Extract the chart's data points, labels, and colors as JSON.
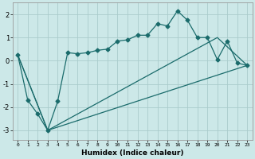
{
  "xlabel": "Humidex (Indice chaleur)",
  "background_color": "#cce8e8",
  "grid_color": "#aacccc",
  "line_color": "#1a6b6b",
  "xlim": [
    -0.5,
    23.5
  ],
  "ylim": [
    -3.4,
    2.5
  ],
  "xticks": [
    0,
    1,
    2,
    3,
    4,
    5,
    6,
    7,
    8,
    9,
    10,
    11,
    12,
    13,
    14,
    15,
    16,
    17,
    18,
    19,
    20,
    21,
    22,
    23
  ],
  "yticks": [
    -3,
    -2,
    -1,
    0,
    1,
    2
  ],
  "line1_x": [
    0,
    1,
    2,
    3,
    4,
    5,
    6,
    7,
    8,
    9,
    10,
    11,
    12,
    13,
    14,
    15,
    16,
    17,
    18,
    19,
    20,
    21,
    22,
    23
  ],
  "line1_y": [
    0.25,
    -1.7,
    -2.3,
    -3.0,
    -1.75,
    0.35,
    0.3,
    0.35,
    0.45,
    0.5,
    0.85,
    0.9,
    1.1,
    1.1,
    1.6,
    1.5,
    2.15,
    1.75,
    1.0,
    1.0,
    0.05,
    0.85,
    -0.1,
    -0.2
  ],
  "line2_x": [
    0,
    3,
    23
  ],
  "line2_y": [
    0.25,
    -3.0,
    -0.2
  ],
  "line3_x": [
    0,
    3,
    20,
    23
  ],
  "line3_y": [
    0.25,
    -3.0,
    1.0,
    -0.2
  ]
}
